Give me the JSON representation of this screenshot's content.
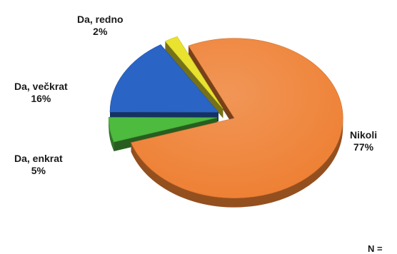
{
  "chart_data": {
    "type": "pie",
    "categories": [
      "Nikoli",
      "Da, enkrat",
      "Da, večkrat",
      "Da, redno"
    ],
    "values": [
      77,
      5,
      16,
      2
    ],
    "value_labels": [
      "77%",
      "5%",
      "16%",
      "2%"
    ],
    "colors": [
      "#ee7f32",
      "#4dbb3e",
      "#2a64c4",
      "#e9e22f"
    ],
    "exploded": true,
    "three_d": true,
    "legend": "none",
    "footnote": "N ="
  }
}
